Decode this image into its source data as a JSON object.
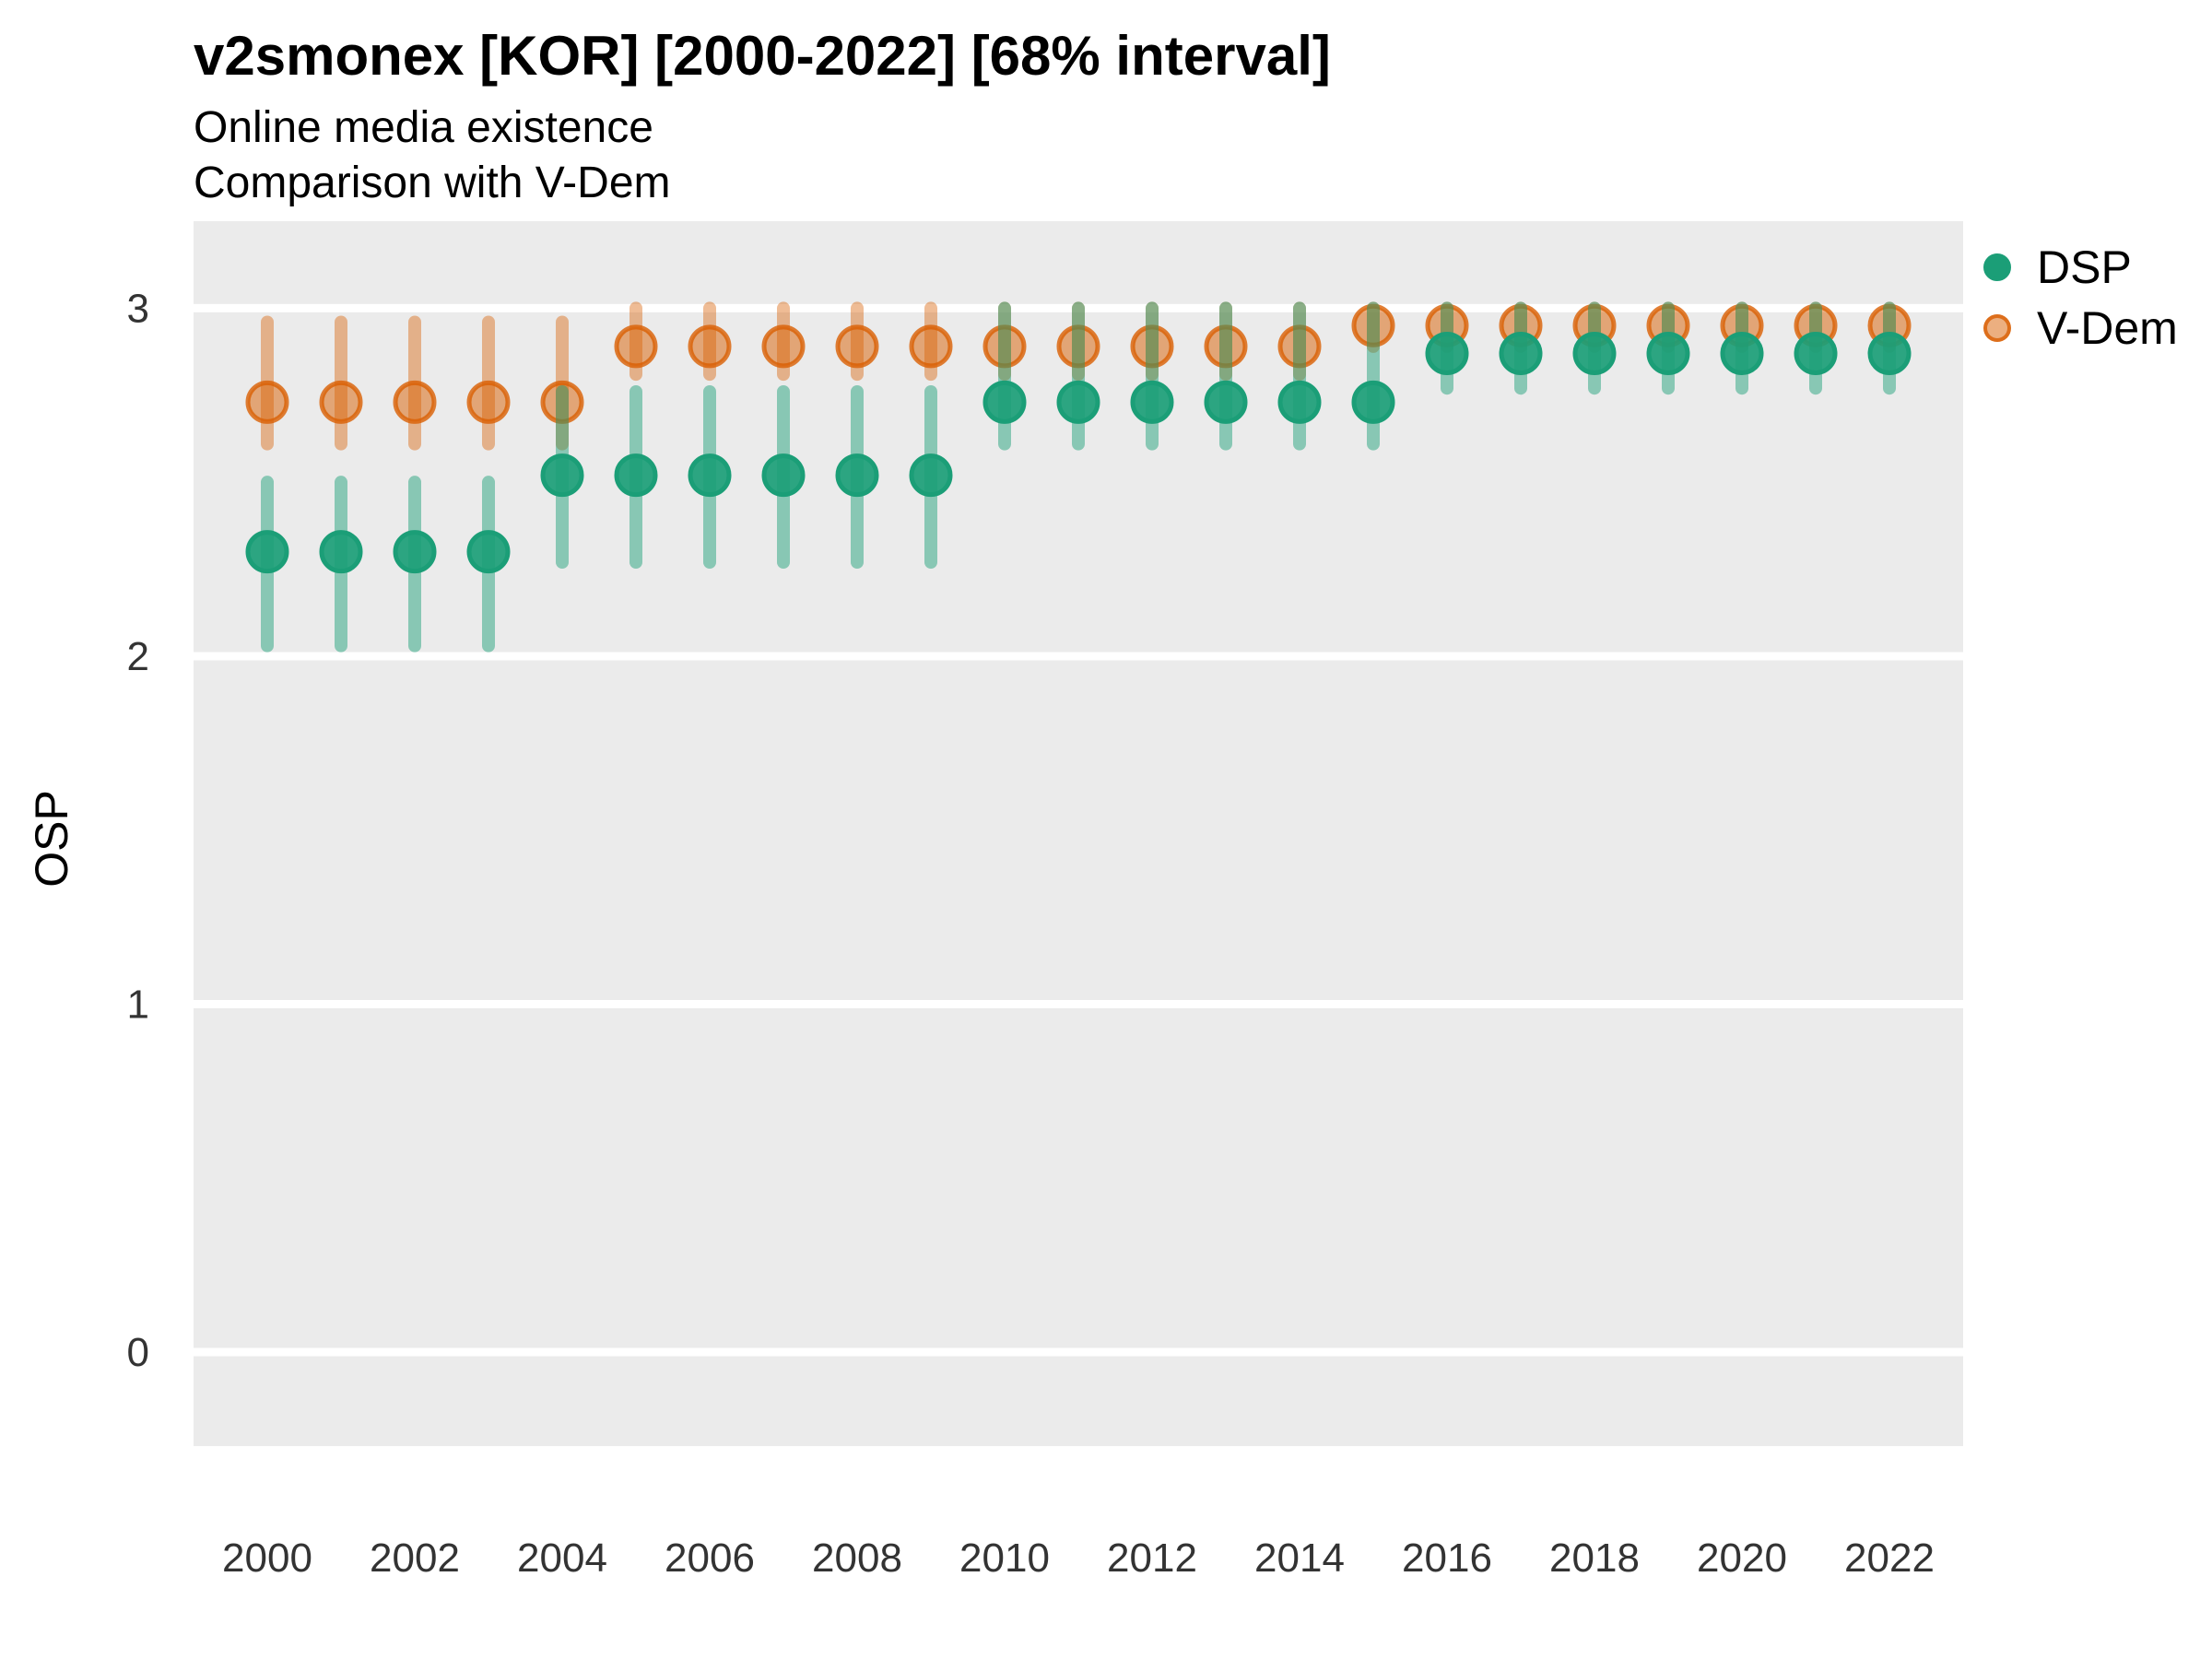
{
  "chart_data": {
    "type": "dot-interval",
    "title": "v2smonex [KOR] [2000-2022] [68% interval]",
    "subtitle": [
      "Online media existence",
      "Comparison with V-Dem"
    ],
    "ylabel": "OSP",
    "interval_label": "68% interval",
    "country": "KOR",
    "variable": "v2smonex",
    "x": [
      2000,
      2001,
      2002,
      2003,
      2004,
      2005,
      2006,
      2007,
      2008,
      2009,
      2010,
      2011,
      2012,
      2013,
      2014,
      2015,
      2016,
      2017,
      2018,
      2019,
      2020,
      2021,
      2022
    ],
    "xticks": [
      2000,
      2002,
      2004,
      2006,
      2008,
      2010,
      2012,
      2014,
      2016,
      2018,
      2020,
      2022
    ],
    "yticks": [
      0,
      1,
      2,
      3
    ],
    "xlim": [
      1999,
      2023
    ],
    "ylim": [
      -0.27,
      3.25
    ],
    "panel_background": "#EBEBEB",
    "grid_color": "#FFFFFF",
    "legend_position": "right-top",
    "series": [
      {
        "name": "DSP",
        "color": "#1B9E77",
        "values": [
          2.3,
          2.3,
          2.3,
          2.3,
          2.52,
          2.52,
          2.52,
          2.52,
          2.52,
          2.52,
          2.73,
          2.73,
          2.73,
          2.73,
          2.73,
          2.73,
          2.87,
          2.87,
          2.87,
          2.87,
          2.87,
          2.87,
          2.87
        ],
        "lower": [
          2.03,
          2.03,
          2.03,
          2.03,
          2.27,
          2.27,
          2.27,
          2.27,
          2.27,
          2.27,
          2.61,
          2.61,
          2.61,
          2.61,
          2.61,
          2.61,
          2.77,
          2.77,
          2.77,
          2.77,
          2.77,
          2.77,
          2.77
        ],
        "upper": [
          2.5,
          2.5,
          2.5,
          2.5,
          2.76,
          2.76,
          2.76,
          2.76,
          2.76,
          2.76,
          3.0,
          3.0,
          3.0,
          3.0,
          3.0,
          3.0,
          3.0,
          3.0,
          3.0,
          3.0,
          3.0,
          3.0,
          3.0
        ]
      },
      {
        "name": "V-Dem",
        "color": "#D95F02",
        "values": [
          2.73,
          2.73,
          2.73,
          2.73,
          2.73,
          2.89,
          2.89,
          2.89,
          2.89,
          2.89,
          2.89,
          2.89,
          2.89,
          2.89,
          2.89,
          2.95,
          2.95,
          2.95,
          2.95,
          2.95,
          2.95,
          2.95,
          2.95
        ],
        "lower": [
          2.61,
          2.61,
          2.61,
          2.61,
          2.61,
          2.81,
          2.81,
          2.81,
          2.81,
          2.81,
          2.81,
          2.81,
          2.81,
          2.81,
          2.81,
          2.89,
          2.89,
          2.89,
          2.89,
          2.89,
          2.89,
          2.89,
          2.89
        ],
        "upper": [
          2.96,
          2.96,
          2.96,
          2.96,
          2.96,
          3.0,
          3.0,
          3.0,
          3.0,
          3.0,
          3.0,
          3.0,
          3.0,
          3.0,
          3.0,
          3.0,
          3.0,
          3.0,
          3.0,
          3.0,
          3.0,
          3.0,
          3.0
        ]
      }
    ]
  }
}
